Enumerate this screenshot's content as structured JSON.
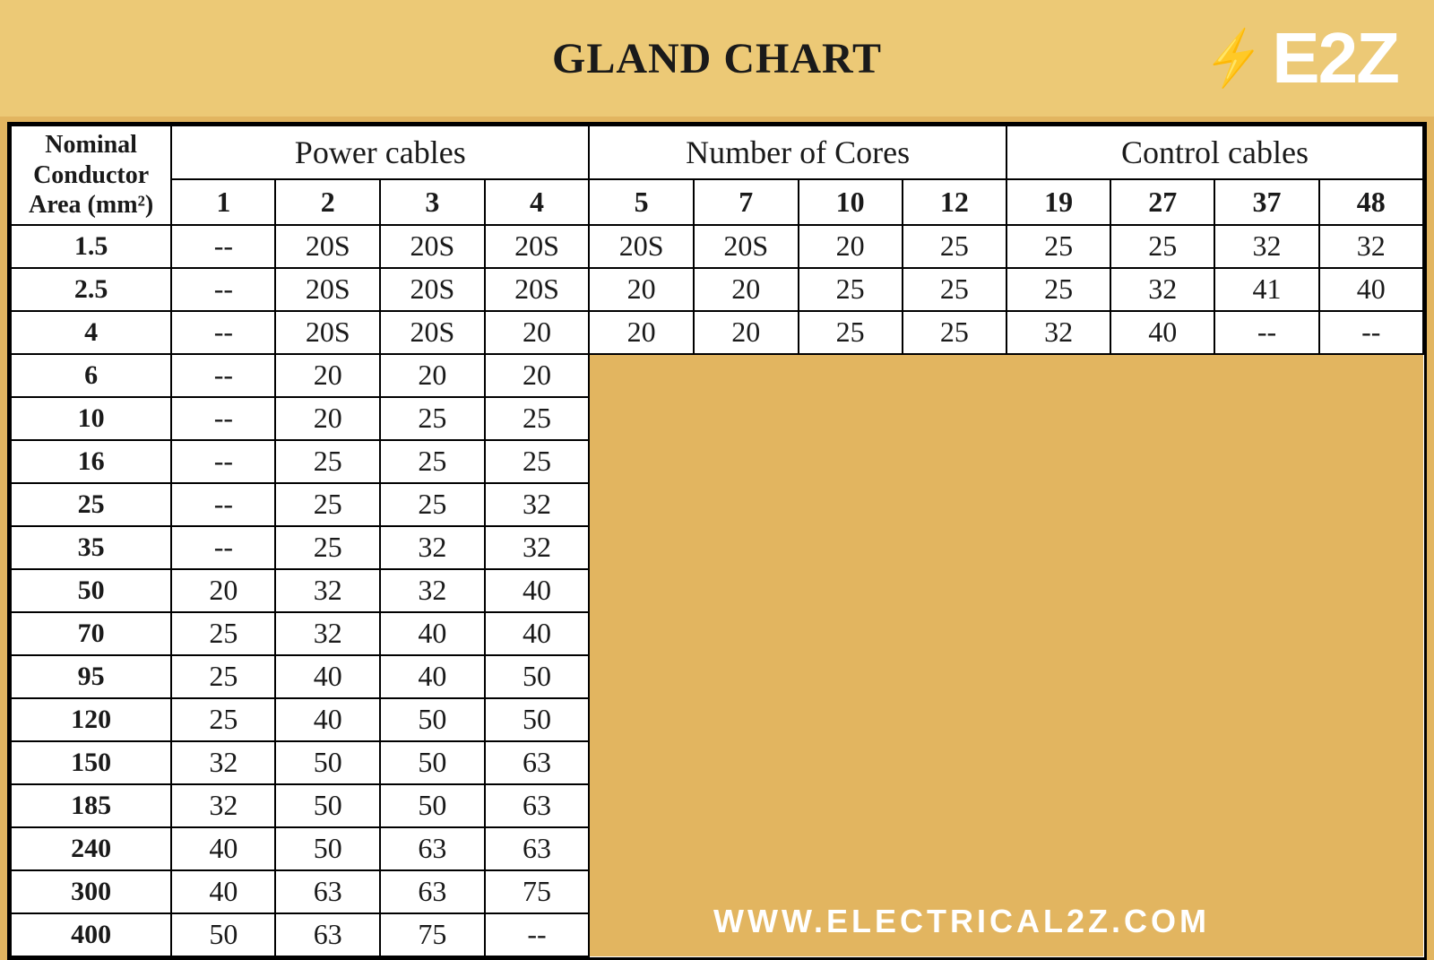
{
  "header": {
    "title": "GLAND CHART",
    "logo_text": "E2Z",
    "bolt_icon": "⚡"
  },
  "colors": {
    "page_bg": "#e2b560",
    "band_bg": "#ecc976",
    "table_bg": "#ffffff",
    "cell_border": "#000000",
    "text": "#1a1a1a",
    "logo_text": "#ffffff",
    "footer_text": "#ffffff"
  },
  "table": {
    "row_header_label": "Nominal Conductor Area (mm²)",
    "groups": [
      {
        "label": "Power cables",
        "span": 4
      },
      {
        "label": "Number of Cores",
        "span": 4
      },
      {
        "label": "Control cables",
        "span": 4
      }
    ],
    "core_columns": [
      "1",
      "2",
      "3",
      "4",
      "5",
      "7",
      "10",
      "12",
      "19",
      "27",
      "37",
      "48"
    ],
    "rows": [
      {
        "area": "1.5",
        "vals": [
          "--",
          "20S",
          "20S",
          "20S",
          "20S",
          "20S",
          "20",
          "25",
          "25",
          "25",
          "32",
          "32"
        ]
      },
      {
        "area": "2.5",
        "vals": [
          "--",
          "20S",
          "20S",
          "20S",
          "20",
          "20",
          "25",
          "25",
          "25",
          "32",
          "41",
          "40"
        ]
      },
      {
        "area": "4",
        "vals": [
          "--",
          "20S",
          "20S",
          "20",
          "20",
          "20",
          "25",
          "25",
          "32",
          "40",
          "--",
          "--"
        ]
      },
      {
        "area": "6",
        "vals": [
          "--",
          "20",
          "20",
          "20"
        ]
      },
      {
        "area": "10",
        "vals": [
          "--",
          "20",
          "25",
          "25"
        ]
      },
      {
        "area": "16",
        "vals": [
          "--",
          "25",
          "25",
          "25"
        ]
      },
      {
        "area": "25",
        "vals": [
          "--",
          "25",
          "25",
          "32"
        ]
      },
      {
        "area": "35",
        "vals": [
          "--",
          "25",
          "32",
          "32"
        ]
      },
      {
        "area": "50",
        "vals": [
          "20",
          "32",
          "32",
          "40"
        ]
      },
      {
        "area": "70",
        "vals": [
          "25",
          "32",
          "40",
          "40"
        ]
      },
      {
        "area": "95",
        "vals": [
          "25",
          "40",
          "40",
          "50"
        ]
      },
      {
        "area": "120",
        "vals": [
          "25",
          "40",
          "50",
          "50"
        ]
      },
      {
        "area": "150",
        "vals": [
          "32",
          "50",
          "50",
          "63"
        ]
      },
      {
        "area": "185",
        "vals": [
          "32",
          "50",
          "50",
          "63"
        ]
      },
      {
        "area": "240",
        "vals": [
          "40",
          "50",
          "63",
          "63"
        ]
      },
      {
        "area": "300",
        "vals": [
          "40",
          "63",
          "63",
          "75"
        ]
      },
      {
        "area": "400",
        "vals": [
          "50",
          "63",
          "75",
          "--"
        ]
      }
    ],
    "yellow_block": {
      "start_row_index": 3,
      "col_start": 4,
      "colspan": 8,
      "rowspan": 14
    }
  },
  "footer": {
    "url": "WWW.ELECTRICAL2Z.COM"
  },
  "typography": {
    "title_fontsize": 48,
    "group_header_fontsize": 36,
    "colnum_fontsize": 32,
    "cell_fontsize": 32,
    "rowhead_fontsize": 28,
    "logo_fontsize": 80,
    "footer_fontsize": 36
  }
}
